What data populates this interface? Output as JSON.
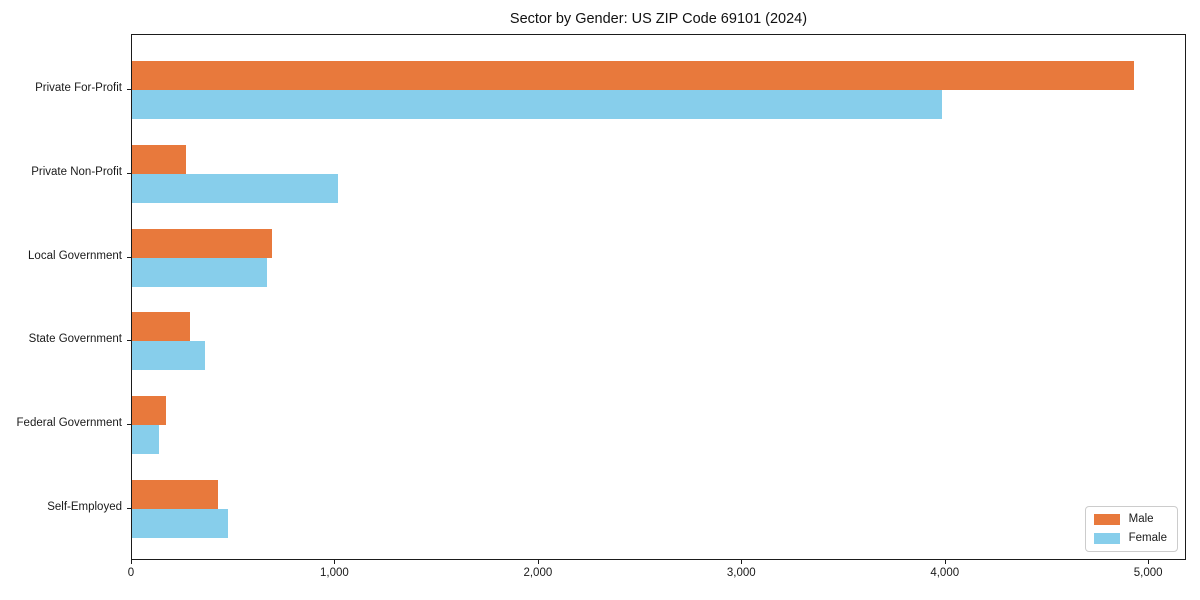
{
  "title": "Sector by Gender: US ZIP Code 69101 (2024)",
  "colors": {
    "male": "#E8793C",
    "female": "#87CEEB",
    "spine": "#1b1b1b",
    "background": "#ffffff"
  },
  "legend": {
    "position": "lower right",
    "items": [
      {
        "label": "Male",
        "color": "#E8793C"
      },
      {
        "label": "Female",
        "color": "#87CEEB"
      }
    ]
  },
  "chart_data": {
    "type": "bar",
    "orientation": "horizontal",
    "title": "Sector by Gender: US ZIP Code 69101 (2024)",
    "categories": [
      "Private For-Profit",
      "Private Non-Profit",
      "Local Government",
      "State Government",
      "Federal Government",
      "Self-Employed"
    ],
    "series": [
      {
        "name": "Male",
        "color": "#E8793C",
        "values": [
          4935,
          265,
          690,
          288,
          168,
          425
        ]
      },
      {
        "name": "Female",
        "color": "#87CEEB",
        "values": [
          3990,
          1015,
          667,
          360,
          135,
          475
        ]
      }
    ],
    "xlabel": "",
    "ylabel": "",
    "xlim": [
      0,
      5186
    ],
    "xticks": [
      0,
      1000,
      2000,
      3000,
      4000,
      5000
    ],
    "xtick_labels": [
      "0",
      "1,000",
      "2,000",
      "3,000",
      "4,000",
      "5,000"
    ],
    "grid": false,
    "legend_position": "lower right"
  }
}
